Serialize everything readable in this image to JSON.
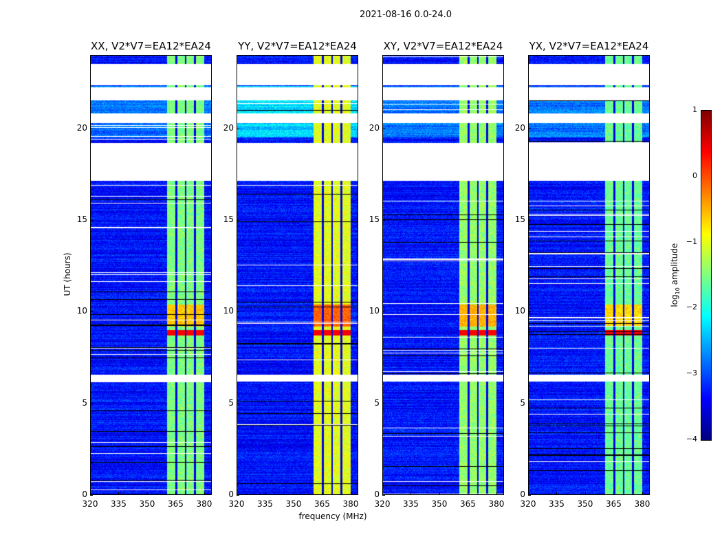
{
  "suptitle": "2021-08-16 0.0-24.0",
  "chart_data": {
    "type": "heatmap",
    "xlabel": "frequency (MHz)",
    "ylabel": "UT (hours)",
    "xlim": [
      320,
      384
    ],
    "ylim": [
      0,
      24
    ],
    "xticks": [
      "320",
      "335",
      "350",
      "365",
      "380"
    ],
    "xtick_values": [
      320,
      335,
      350,
      365,
      380
    ],
    "yticks": [
      "0",
      "5",
      "10",
      "15",
      "20"
    ],
    "ytick_values": [
      0,
      5,
      10,
      15,
      20
    ],
    "panels": [
      {
        "title": "XX, V2*V7=EA12*EA24",
        "band_level": -1.5
      },
      {
        "title": "YY, V2*V7=EA12*EA24",
        "band_level": -1.0
      },
      {
        "title": "XY, V2*V7=EA12*EA24",
        "band_level": -1.4
      },
      {
        "title": "YX, V2*V7=EA12*EA24",
        "band_level": -1.6
      }
    ],
    "background_level": -3.3,
    "rfi_band_mhz": [
      360.5,
      380
    ],
    "strong_rfi_hours": [
      [
        8.7,
        9.0
      ],
      [
        9.2,
        10.4
      ]
    ],
    "flagged_hours": [
      [
        22.36,
        23.52
      ],
      [
        21.54,
        22.25
      ],
      [
        20.3,
        20.82
      ],
      [
        17.12,
        19.21
      ],
      [
        6.18,
        6.55
      ]
    ],
    "colorbar": {
      "label_prefix": "log",
      "label_sub": "10",
      "label_suffix": " amplitude",
      "range": [
        -4,
        1
      ],
      "ticks": [
        "1",
        "0",
        "−1",
        "−2",
        "−3",
        "−4"
      ],
      "tick_values": [
        1,
        0,
        -1,
        -2,
        -3,
        -4
      ],
      "colormap": "jet"
    }
  }
}
